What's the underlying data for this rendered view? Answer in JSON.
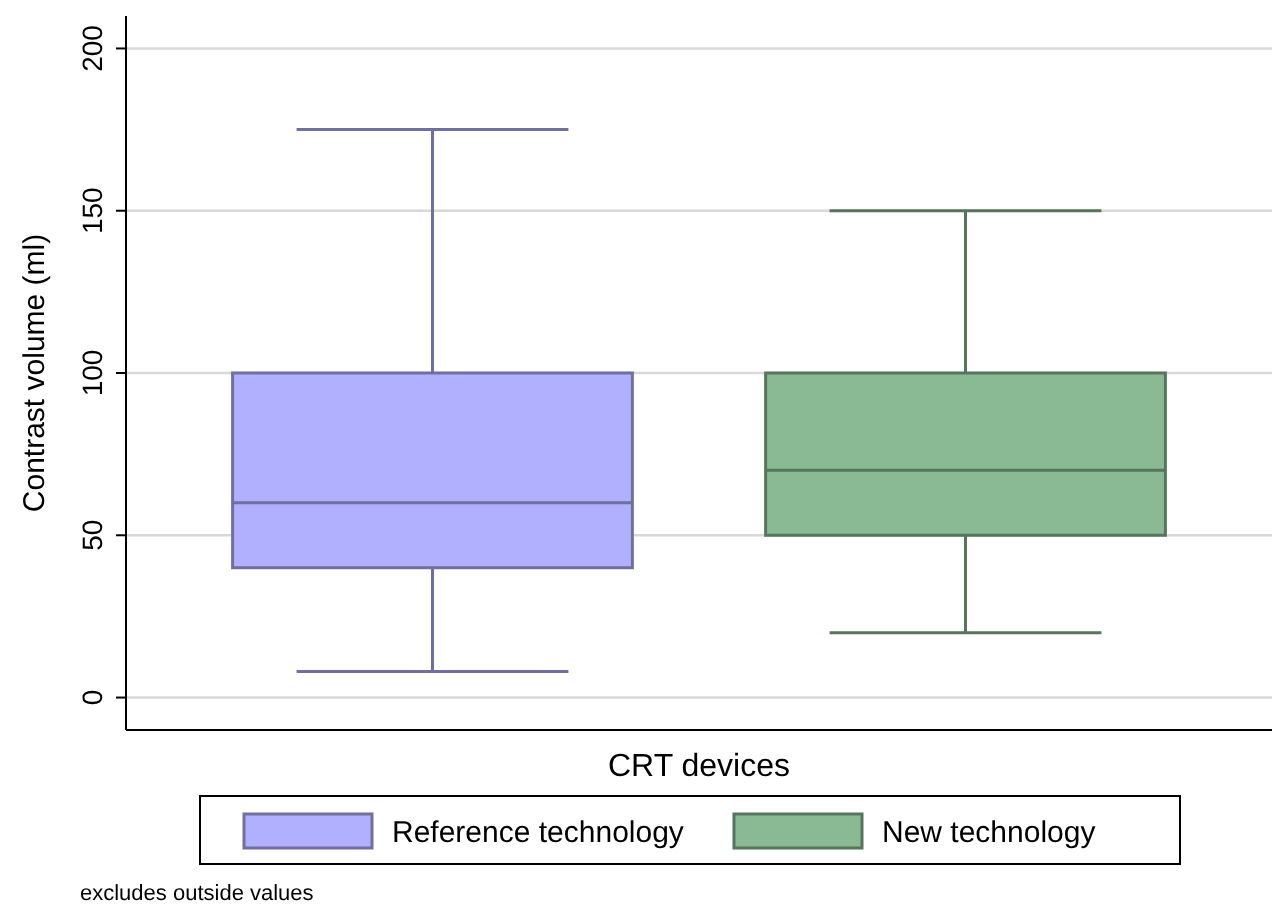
{
  "chart_data": {
    "type": "box",
    "xlabel": "CRT devices",
    "ylabel": "Contrast volume (ml)",
    "categories": [
      null
    ],
    "ylim": [
      -10,
      210
    ],
    "yticks": [
      0,
      50,
      100,
      150,
      200
    ],
    "grid": "y",
    "legend": "bottom",
    "annotations": [
      "excludes outside values"
    ],
    "series": [
      {
        "name": "Reference technology",
        "color": "#b0b0ff",
        "boxes": [
          {
            "low": 8,
            "q1": 40,
            "median": 60,
            "q3": 100,
            "high": 175
          }
        ]
      },
      {
        "name": "New technology",
        "color": "#8aba94",
        "boxes": [
          {
            "low": 20,
            "q1": 50,
            "median": 70,
            "q3": 100,
            "high": 150
          }
        ]
      }
    ]
  }
}
